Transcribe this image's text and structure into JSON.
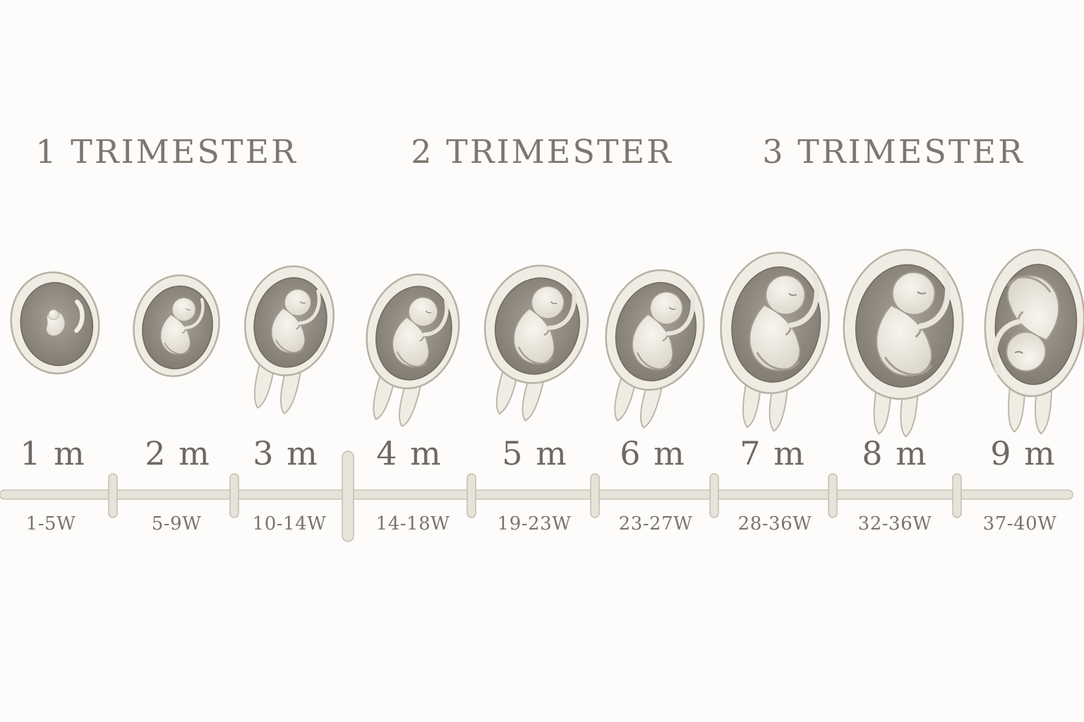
{
  "trimesters": [
    {
      "label": "1 TRIMESTER"
    },
    {
      "label": "2 TRIMESTER"
    },
    {
      "label": "3 TRIMESTER"
    }
  ],
  "stages": [
    {
      "month": "1 m",
      "weeks": "1-5W"
    },
    {
      "month": "2 m",
      "weeks": "5-9W"
    },
    {
      "month": "3 m",
      "weeks": "10-14W"
    },
    {
      "month": "4 m",
      "weeks": "14-18W"
    },
    {
      "month": "5 m",
      "weeks": "19-23W"
    },
    {
      "month": "6 m",
      "weeks": "23-27W"
    },
    {
      "month": "7 m",
      "weeks": "28-36W"
    },
    {
      "month": "8 m",
      "weeks": "32-36W"
    },
    {
      "month": "9 m",
      "weeks": "37-40W"
    }
  ],
  "colors": {
    "background": "#fdfcfa",
    "text": "#77716a",
    "sac_outline": "#efece3",
    "sac_interior": "#8d877d",
    "fetus": "#f1eee6",
    "timeline": "#e4e0d6"
  },
  "icons": [
    "embryo-icon",
    "fetus-icon"
  ]
}
